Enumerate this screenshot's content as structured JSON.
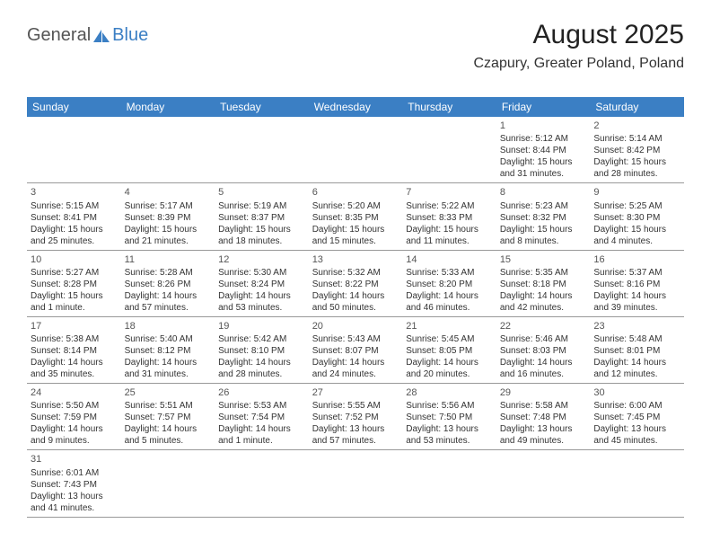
{
  "logo": {
    "part1": "General",
    "part2": "Blue"
  },
  "title": "August 2025",
  "subtitle": "Czapury, Greater Poland, Poland",
  "colors": {
    "header_bg": "#3b7fc4",
    "header_text": "#ffffff",
    "border": "#999999",
    "text": "#333333",
    "logo_blue": "#3b7fc4"
  },
  "days_of_week": [
    "Sunday",
    "Monday",
    "Tuesday",
    "Wednesday",
    "Thursday",
    "Friday",
    "Saturday"
  ],
  "weeks": [
    [
      null,
      null,
      null,
      null,
      null,
      {
        "n": "1",
        "rise": "5:12 AM",
        "set": "8:44 PM",
        "dl": "15 hours and 31 minutes."
      },
      {
        "n": "2",
        "rise": "5:14 AM",
        "set": "8:42 PM",
        "dl": "15 hours and 28 minutes."
      }
    ],
    [
      {
        "n": "3",
        "rise": "5:15 AM",
        "set": "8:41 PM",
        "dl": "15 hours and 25 minutes."
      },
      {
        "n": "4",
        "rise": "5:17 AM",
        "set": "8:39 PM",
        "dl": "15 hours and 21 minutes."
      },
      {
        "n": "5",
        "rise": "5:19 AM",
        "set": "8:37 PM",
        "dl": "15 hours and 18 minutes."
      },
      {
        "n": "6",
        "rise": "5:20 AM",
        "set": "8:35 PM",
        "dl": "15 hours and 15 minutes."
      },
      {
        "n": "7",
        "rise": "5:22 AM",
        "set": "8:33 PM",
        "dl": "15 hours and 11 minutes."
      },
      {
        "n": "8",
        "rise": "5:23 AM",
        "set": "8:32 PM",
        "dl": "15 hours and 8 minutes."
      },
      {
        "n": "9",
        "rise": "5:25 AM",
        "set": "8:30 PM",
        "dl": "15 hours and 4 minutes."
      }
    ],
    [
      {
        "n": "10",
        "rise": "5:27 AM",
        "set": "8:28 PM",
        "dl": "15 hours and 1 minute."
      },
      {
        "n": "11",
        "rise": "5:28 AM",
        "set": "8:26 PM",
        "dl": "14 hours and 57 minutes."
      },
      {
        "n": "12",
        "rise": "5:30 AM",
        "set": "8:24 PM",
        "dl": "14 hours and 53 minutes."
      },
      {
        "n": "13",
        "rise": "5:32 AM",
        "set": "8:22 PM",
        "dl": "14 hours and 50 minutes."
      },
      {
        "n": "14",
        "rise": "5:33 AM",
        "set": "8:20 PM",
        "dl": "14 hours and 46 minutes."
      },
      {
        "n": "15",
        "rise": "5:35 AM",
        "set": "8:18 PM",
        "dl": "14 hours and 42 minutes."
      },
      {
        "n": "16",
        "rise": "5:37 AM",
        "set": "8:16 PM",
        "dl": "14 hours and 39 minutes."
      }
    ],
    [
      {
        "n": "17",
        "rise": "5:38 AM",
        "set": "8:14 PM",
        "dl": "14 hours and 35 minutes."
      },
      {
        "n": "18",
        "rise": "5:40 AM",
        "set": "8:12 PM",
        "dl": "14 hours and 31 minutes."
      },
      {
        "n": "19",
        "rise": "5:42 AM",
        "set": "8:10 PM",
        "dl": "14 hours and 28 minutes."
      },
      {
        "n": "20",
        "rise": "5:43 AM",
        "set": "8:07 PM",
        "dl": "14 hours and 24 minutes."
      },
      {
        "n": "21",
        "rise": "5:45 AM",
        "set": "8:05 PM",
        "dl": "14 hours and 20 minutes."
      },
      {
        "n": "22",
        "rise": "5:46 AM",
        "set": "8:03 PM",
        "dl": "14 hours and 16 minutes."
      },
      {
        "n": "23",
        "rise": "5:48 AM",
        "set": "8:01 PM",
        "dl": "14 hours and 12 minutes."
      }
    ],
    [
      {
        "n": "24",
        "rise": "5:50 AM",
        "set": "7:59 PM",
        "dl": "14 hours and 9 minutes."
      },
      {
        "n": "25",
        "rise": "5:51 AM",
        "set": "7:57 PM",
        "dl": "14 hours and 5 minutes."
      },
      {
        "n": "26",
        "rise": "5:53 AM",
        "set": "7:54 PM",
        "dl": "14 hours and 1 minute."
      },
      {
        "n": "27",
        "rise": "5:55 AM",
        "set": "7:52 PM",
        "dl": "13 hours and 57 minutes."
      },
      {
        "n": "28",
        "rise": "5:56 AM",
        "set": "7:50 PM",
        "dl": "13 hours and 53 minutes."
      },
      {
        "n": "29",
        "rise": "5:58 AM",
        "set": "7:48 PM",
        "dl": "13 hours and 49 minutes."
      },
      {
        "n": "30",
        "rise": "6:00 AM",
        "set": "7:45 PM",
        "dl": "13 hours and 45 minutes."
      }
    ],
    [
      {
        "n": "31",
        "rise": "6:01 AM",
        "set": "7:43 PM",
        "dl": "13 hours and 41 minutes."
      },
      null,
      null,
      null,
      null,
      null,
      null
    ]
  ],
  "labels": {
    "sunrise": "Sunrise: ",
    "sunset": "Sunset: ",
    "daylight": "Daylight: "
  }
}
